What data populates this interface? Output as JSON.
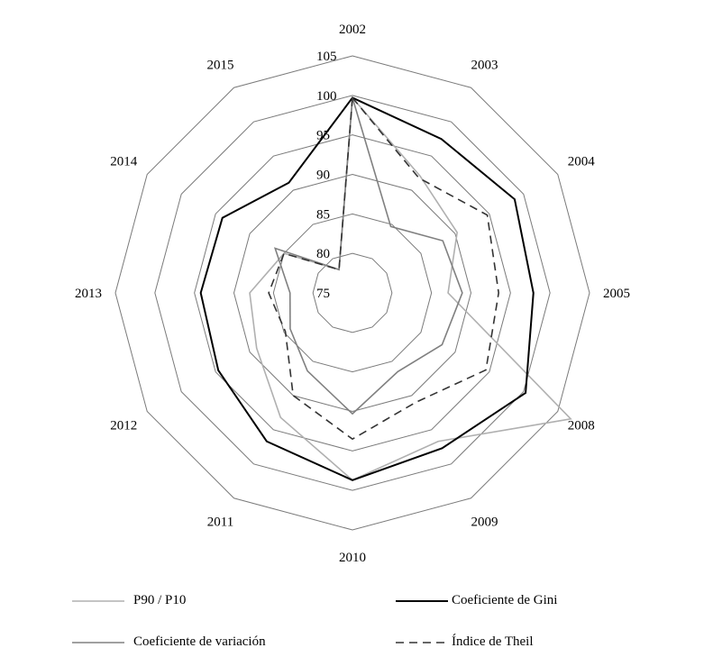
{
  "chart_data": {
    "type": "radar",
    "title": "",
    "categories": [
      "2002",
      "2003",
      "2004",
      "2005",
      "2008",
      "2009",
      "2010",
      "2011",
      "2012",
      "2013",
      "2014",
      "2015"
    ],
    "rlim": [
      75,
      105
    ],
    "rticks": [
      75,
      80,
      85,
      90,
      95,
      100,
      105
    ],
    "grid": true,
    "legend_position": "bottom",
    "series": [
      {
        "name": "P90 / P10",
        "style": "solid",
        "color": "#b0b0b0",
        "values": [
          99.7,
          92.1,
          90.3,
          87.1,
          106.9,
          96.7,
          98.7,
          93.2,
          89.0,
          88.0,
          85.0,
          78.4
        ]
      },
      {
        "name": "Coeficiente de Gini",
        "style": "solid",
        "color": "#000000",
        "values": [
          99.7,
          97.5,
          98.7,
          97.9,
          100.3,
          97.7,
          98.7,
          96.7,
          94.6,
          94.2,
          94.0,
          91.1
        ]
      },
      {
        "name": "Coeficiente de variación",
        "style": "solid",
        "color": "#808080",
        "values": [
          99.7,
          84.7,
          88.2,
          88.9,
          88.1,
          86.5,
          90.3,
          86.4,
          84.1,
          82.9,
          86.3,
          78.4
        ]
      },
      {
        "name": "Índice de Theil",
        "style": "dashed",
        "color": "#333333",
        "values": [
          99.7,
          91.8,
          94.7,
          93.5,
          94.5,
          91.0,
          93.5,
          90.0,
          84.8,
          85.6,
          85.0,
          78.4
        ]
      }
    ]
  },
  "legend": {
    "p90": "P90 / P10",
    "gini": "Coeficiente de Gini",
    "cv": "Coeficiente de variación",
    "theil": "Índice de Theil"
  }
}
